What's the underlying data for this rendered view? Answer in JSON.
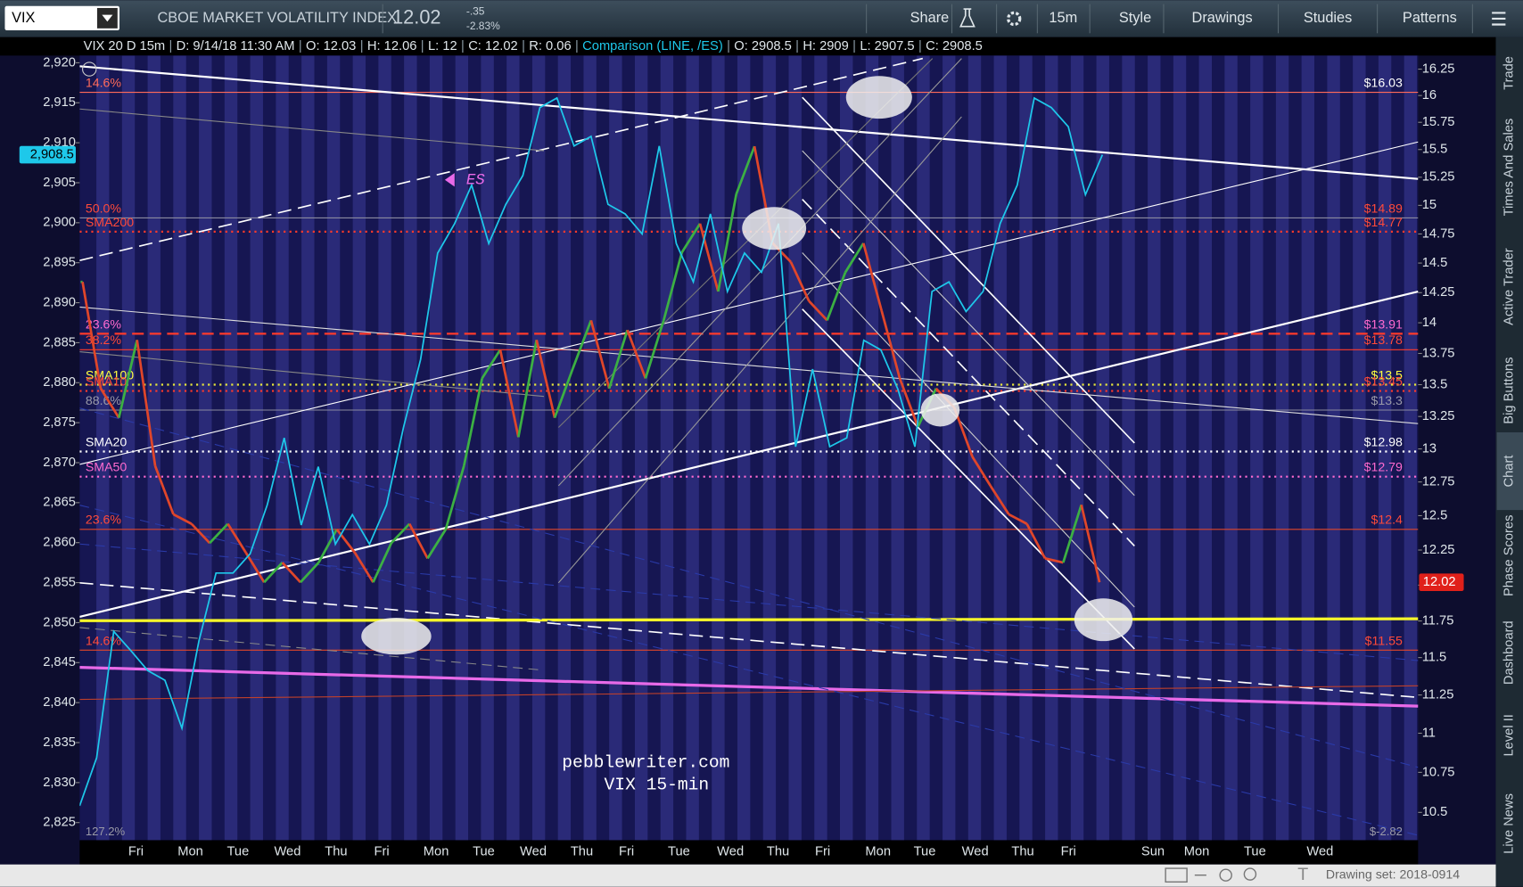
{
  "toolbar": {
    "symbol": "VIX",
    "description": "CBOE MARKET VOLATILITY INDEX",
    "last": "12.02",
    "change": "-.35",
    "change_pct": "-2.83%",
    "buttons": [
      "Share",
      "15m",
      "Style",
      "Drawings",
      "Studies",
      "Patterns"
    ]
  },
  "info_bar": {
    "separator": "|",
    "segments": [
      "VIX 20 D 15m",
      "D: 9/14/18 11:30 AM",
      "O: 12.03",
      "H: 12.06",
      "L: 12",
      "C: 12.02",
      "R: 0.06",
      "Comparison (LINE, /ES)",
      "O: 2908.5",
      "H: 2909",
      "L: 2907.5",
      "C: 2908.5"
    ]
  },
  "sidebar": {
    "tabs": [
      "Trade",
      "Times And Sales",
      "Active Trader",
      "Big Buttons",
      "Chart",
      "Phase Scores",
      "Dashboard",
      "Level II",
      "Live News"
    ]
  },
  "time_axis": {
    "labels": [
      "Fri",
      "Mon",
      "Tue",
      "Wed",
      "Thu",
      "Fri",
      "Mon",
      "Tue",
      "Wed",
      "Thu",
      "Fri",
      "Tue",
      "Wed",
      "Thu",
      "Fri",
      "Mon",
      "Tue",
      "Wed",
      "Thu",
      "Fri",
      "Sun",
      "Mon",
      "Tue",
      "Wed"
    ]
  },
  "status_bar": {
    "drawing_set": "Drawing set: 2018-0914"
  },
  "chart_data": {
    "type": "line",
    "ylim": [
      2822.8,
      2920.9
    ],
    "yticks": [
      {
        "value": 2825,
        "label": "2,825"
      },
      {
        "value": 2830,
        "label": "2,830"
      },
      {
        "value": 2835,
        "label": "2,835"
      },
      {
        "value": 2840,
        "label": "2,840"
      },
      {
        "value": 2845,
        "label": "2,845"
      },
      {
        "value": 2850,
        "label": "2,850"
      },
      {
        "value": 2855,
        "label": "2,855"
      },
      {
        "value": 2860,
        "label": "2,860"
      },
      {
        "value": 2865,
        "label": "2,865"
      },
      {
        "value": 2870,
        "label": "2,870"
      },
      {
        "value": 2875,
        "label": "2,875"
      },
      {
        "value": 2880,
        "label": "2,880"
      },
      {
        "value": 2885,
        "label": "2,885"
      },
      {
        "value": 2890,
        "label": "2,890"
      },
      {
        "value": 2895,
        "label": "2,895"
      },
      {
        "value": 2900,
        "label": "2,900"
      },
      {
        "value": 2905,
        "label": "2,905"
      },
      {
        "value": 2910,
        "label": "2,910"
      },
      {
        "value": 2915,
        "label": "2,915"
      },
      {
        "value": 2920,
        "label": "2,920"
      }
    ],
    "y2lim": [
      10.33,
      16.38
    ],
    "y2log": true,
    "y2ticks": [
      10.5,
      10.75,
      11,
      11.25,
      11.5,
      11.75,
      12,
      12.25,
      12.5,
      12.75,
      13,
      13.25,
      13.5,
      13.75,
      14,
      14.25,
      14.5,
      14.75,
      15,
      15.25,
      15.5,
      15.75,
      16,
      16.25
    ],
    "series": [
      {
        "axis": "y2",
        "up_color": "#3cb043",
        "down_color": "#e0462a",
        "values": [
          14.34,
          13.47,
          13.24,
          13.86,
          12.87,
          12.51,
          12.44,
          12.3,
          12.44,
          12.23,
          12.02,
          12.16,
          12.02,
          12.16,
          12.4,
          12.23,
          12.02,
          12.3,
          12.44,
          12.19,
          12.4,
          12.87,
          13.55,
          13.78,
          13.09,
          13.86,
          13.24,
          13.63,
          14.02,
          13.47,
          13.94,
          13.55,
          14.02,
          14.59,
          14.84,
          14.26,
          15.1,
          15.53,
          14.67,
          14.51,
          14.18,
          14.02,
          14.42,
          14.67,
          14.1,
          13.55,
          13.17,
          13.47,
          13.32,
          12.94,
          12.72,
          12.51,
          12.44,
          12.19,
          12.16,
          12.58,
          12.02
        ]
      },
      {
        "axis": "y",
        "color": "#1ec8ea",
        "values": [
          2827.1,
          2833.1,
          2848.9,
          2846.5,
          2844.0,
          2842.8,
          2836.8,
          2847.7,
          2856.2,
          2856.2,
          2858.6,
          2864.7,
          2873.1,
          2862.2,
          2869.5,
          2859.8,
          2863.5,
          2859.8,
          2864.7,
          2874.4,
          2882.9,
          2896.2,
          2899.9,
          2904.7,
          2897.4,
          2902.3,
          2905.9,
          2914.4,
          2915.6,
          2909.6,
          2910.8,
          2902.3,
          2901.1,
          2898.6,
          2909.6,
          2897.4,
          2892.6,
          2901.1,
          2891.4,
          2896.2,
          2893.8,
          2899.9,
          2872.0,
          2881.7,
          2872.0,
          2873.1,
          2885.3,
          2884.1,
          2879.2,
          2872.0,
          2891.4,
          2892.6,
          2888.9,
          2891.4,
          2899.9,
          2904.7,
          2915.6,
          2914.4,
          2912.0,
          2903.5,
          2908.5
        ]
      }
    ],
    "levels": [
      {
        "value": 16.03,
        "label": "$16.03",
        "left_label": "14.6%",
        "color": "#ff6a5a",
        "label_color": "#ffffff",
        "left_color": "#ff6a5a",
        "dash": "solid"
      },
      {
        "value": 14.89,
        "label": "$14.89",
        "left_label": "50.0%",
        "color": "#8a8aa0",
        "label_color": "#ff4a3a",
        "left_color": "#ff4a3a",
        "dash": "solid"
      },
      {
        "value": 14.77,
        "label": "$14.77",
        "left_label": "SMA200",
        "color": "#ff3a2a",
        "label_color": "#ff4a3a",
        "left_color": "#ff4a3a",
        "dash": "dotted"
      },
      {
        "value": 13.91,
        "label": "$13.91",
        "left_label": "23.6%",
        "color": "#ff3a2a",
        "label_color": "#ff6ad0",
        "left_color": "#ff6ad0",
        "dash": "dashed"
      },
      {
        "value": 13.78,
        "label": "$13.78",
        "left_label": "38.2%",
        "color": "#ff3a2a",
        "label_color": "#ff4a3a",
        "left_color": "#ff4a3a",
        "dash": "solid"
      },
      {
        "value": 13.5,
        "label": "$13.5",
        "left_label": "SMA100",
        "color": "#e8e83a",
        "label_color": "#ffff40",
        "left_color": "#ffff40",
        "dash": "dotted"
      },
      {
        "value": 13.45,
        "label": "$13.45",
        "left_label": "SMA10",
        "color": "#ff3a2a",
        "label_color": "#ff4a3a",
        "left_color": "#ff4a3a",
        "dash": "dotted"
      },
      {
        "value": 13.3,
        "label": "$13.3",
        "left_label": "88.6%",
        "color": "#8a8aa0",
        "label_color": "#9a9aa8",
        "left_color": "#9a9aa8",
        "dash": "solid"
      },
      {
        "value": 12.98,
        "label": "$12.98",
        "left_label": "SMA20",
        "color": "#ffffff",
        "label_color": "#ffffff",
        "left_color": "#ffffff",
        "dash": "dotted"
      },
      {
        "value": 12.79,
        "label": "$12.79",
        "left_label": "SMA50",
        "color": "#ff6ad0",
        "label_color": "#ff6ad0",
        "left_color": "#ff6ad0",
        "dash": "dotted"
      },
      {
        "value": 12.4,
        "label": "$12.4",
        "left_label": "23.6%",
        "color": "#e0462a",
        "label_color": "#ff4a3a",
        "left_color": "#ff4a3a",
        "dash": "solid"
      },
      {
        "value": 11.55,
        "label": "$11.55",
        "left_label": "14.6%",
        "color": "#e0462a",
        "label_color": "#ff4a3a",
        "left_color": "#ff4a3a",
        "dash": "solid"
      }
    ],
    "annotations": {
      "es_marker": "ES",
      "watermark_site": "pebblewriter.com",
      "watermark_caption": "VIX 15-min",
      "es_price_tag": "2,908.5",
      "vix_price_tag": "12.02",
      "offscale_left": "127.2%",
      "offscale_right": "$-2.82"
    }
  }
}
